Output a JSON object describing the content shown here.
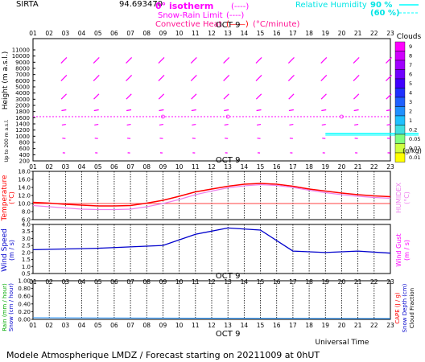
{
  "header": {
    "station": "SIRTA",
    "value_overlap": "94.693470",
    "legend": {
      "zero_isotherm": "0° isotherm",
      "snow_rain_limit": "Snow-Rain Limit",
      "convective_heat": "Convective Heat.",
      "convective_unit": "(°C/minute)",
      "relative_humidity": "Relative Humidity",
      "rh_90": "90 %",
      "rh_60": "(60 %)"
    }
  },
  "axes": {
    "hours": [
      "01",
      "02",
      "03",
      "04",
      "05",
      "06",
      "07",
      "08",
      "09",
      "10",
      "11",
      "12",
      "13",
      "14",
      "15",
      "16",
      "17",
      "18",
      "19",
      "20",
      "21",
      "22",
      "23"
    ],
    "day_label": "OCT  9",
    "height_ticks": [
      "11000",
      "10000",
      "9000",
      "8000",
      "7000",
      "6000",
      "5000",
      "4000",
      "3000",
      "2000",
      "1800",
      "1600",
      "1400",
      "1200",
      "1000",
      "800",
      "600",
      "400",
      "200"
    ],
    "height_label": "Height  (m  a.s.l.)",
    "height_sublabel": "Up to 200 m a.s.l.",
    "temp_ticks": [
      "18.0",
      "16.0",
      "14.0",
      "12.0",
      "10.0",
      "8.0",
      "6.0"
    ],
    "temp_label": "Temperature",
    "temp_unit": "(°C)",
    "humidex_label": "HUMIDEX",
    "humidex_unit": "(°C)",
    "wind_ticks": [
      "4.0",
      "3.5",
      "3.0",
      "2.5",
      "2.0",
      "1.5",
      "1.0",
      "0.5"
    ],
    "wind_label": "Wind Speed",
    "wind_unit": "(m / s)",
    "gust_label": "Wind Gust",
    "gust_unit": "(m / s)",
    "rain_ticks": [
      "1.00",
      "0.80",
      "0.60",
      "0.40",
      "0.20",
      "0.00"
    ],
    "rain_label": "Rain (mm / hour)",
    "snow_label": "Snow (cm / hour)",
    "cape_label": "CAPE (J / g)",
    "snow_depth_label": "Snow Depth (cm)",
    "cloud_fraction_label": "Cloud Fraction",
    "universal_time": "Universal Time"
  },
  "clouds_scale": {
    "title": "Clouds",
    "levels": [
      "9",
      "8",
      "7",
      "6",
      "5",
      "4",
      "3",
      "2",
      "1",
      "0.2",
      "0.05",
      "0.02",
      "0.01"
    ],
    "colors": [
      "#ff00ff",
      "#d000ff",
      "#a000ff",
      "#7000ff",
      "#4000ff",
      "#2030ff",
      "#2060ff",
      "#2090ff",
      "#20c0ff",
      "#40e0e0",
      "#80ff80",
      "#d0ff40",
      "#ffff00"
    ],
    "unit": "(g/kg)"
  },
  "footer": {
    "text": "Modele Atmospherique LMDZ / Forecast starting on 20211009 at 0hUT"
  },
  "colors": {
    "magenta": "#ff00ff",
    "cyan": "#00ffff",
    "red": "#ff0000",
    "temp_red": "#ff0000",
    "humidex": "#ee82ee",
    "wind": "#0000cc",
    "rain": "#00aa00"
  },
  "chart_data": [
    {
      "type": "line",
      "title": "Temperature",
      "x": [
        1,
        2,
        3,
        4,
        5,
        6,
        7,
        8,
        9,
        10,
        11,
        12,
        13,
        14,
        15,
        16,
        17,
        18,
        19,
        20,
        21,
        22,
        23
      ],
      "ylim": [
        6,
        18
      ],
      "ylabel": "Temperature (°C)",
      "series": [
        {
          "name": "Temperature",
          "values": [
            10.3,
            10.1,
            9.8,
            9.6,
            9.4,
            9.4,
            9.5,
            10.1,
            10.8,
            11.8,
            12.9,
            13.6,
            14.3,
            14.8,
            15.0,
            14.8,
            14.3,
            13.6,
            13.1,
            12.6,
            12.2,
            11.9,
            11.7
          ]
        },
        {
          "name": "HUMIDEX",
          "values": [
            9.5,
            9.2,
            8.9,
            8.6,
            8.5,
            8.5,
            8.6,
            9.2,
            10.0,
            11.0,
            12.2,
            13.1,
            13.9,
            14.4,
            14.7,
            14.5,
            14.0,
            13.3,
            12.7,
            12.2,
            11.8,
            11.5,
            11.3
          ]
        }
      ]
    },
    {
      "type": "line",
      "title": "Wind Speed",
      "x": [
        1,
        3,
        5,
        7,
        9,
        11,
        13,
        15,
        17,
        19,
        21,
        23
      ],
      "ylim": [
        0.5,
        4.0
      ],
      "ylabel": "Wind Speed (m / s)",
      "series": [
        {
          "name": "Wind Speed",
          "values": [
            2.2,
            2.25,
            2.3,
            2.4,
            2.5,
            3.3,
            3.75,
            3.6,
            2.1,
            2.0,
            2.1,
            1.95
          ]
        }
      ]
    },
    {
      "type": "line",
      "title": "Rain",
      "x": [
        1,
        23
      ],
      "ylim": [
        0,
        1
      ],
      "series": [
        {
          "name": "Rain",
          "values": [
            0.02,
            0.0
          ]
        }
      ]
    }
  ]
}
